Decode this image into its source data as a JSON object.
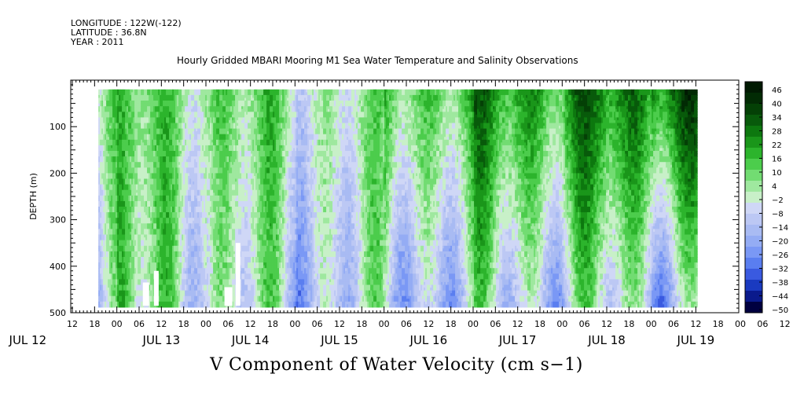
{
  "header": {
    "longitude": "LONGITUDE : 122W(-122)",
    "latitude": "LATITUDE : 36.8N",
    "year": "YEAR : 2011"
  },
  "chart_data": {
    "type": "heatmap",
    "title": "Hourly Gridded MBARI Mooring M1 Sea Water Temperature and Salinity Observations",
    "bottom_title": "V Component of Water Velocity (cm s−1)",
    "ylabel": "DEPTH (m)",
    "y_inverted": true,
    "ylim": [
      500,
      0
    ],
    "y_ticks": [
      100,
      200,
      300,
      400,
      500
    ],
    "y_tick_labels": [
      "100",
      "200",
      "300",
      "400",
      "500"
    ],
    "y_start_label": "",
    "data_depth_range": [
      20,
      485
    ],
    "x_hour_labels": [
      "12",
      "18",
      "00",
      "06",
      "12",
      "18",
      "00",
      "06",
      "12",
      "18",
      "00",
      "06",
      "12",
      "18",
      "00",
      "06",
      "12",
      "18",
      "00",
      "06",
      "12",
      "18",
      "00",
      "06",
      "12",
      "18",
      "00",
      "06",
      "12",
      "18",
      "00",
      "06",
      "12"
    ],
    "x_day_labels": [
      "JUL 12",
      "JUL 13",
      "JUL 14",
      "JUL 15",
      "JUL 16",
      "JUL 17",
      "JUL 18",
      "JUL 19"
    ],
    "data_time_range": [
      "JUL 12 19:00",
      "JUL 19 12:00"
    ],
    "colorbar": {
      "labels": [
        "46",
        "40",
        "34",
        "28",
        "22",
        "16",
        "10",
        "4",
        "−2",
        "−8",
        "−14",
        "−20",
        "−26",
        "−32",
        "−38",
        "−44",
        "−50"
      ],
      "min": -50,
      "max": 50,
      "colors": [
        "#000040",
        "#0a1a8c",
        "#1a3ac0",
        "#3a5ae0",
        "#5a7ef0",
        "#7a98f5",
        "#94acf4",
        "#a9bbf3",
        "#bcc8f4",
        "#cfd7f6",
        "#c8f0c8",
        "#9fe89f",
        "#72dc72",
        "#4ccd4c",
        "#2cb42c",
        "#1a961a",
        "#0d780f",
        "#085a0b",
        "#044006",
        "#022b04",
        "#011a02"
      ]
    },
    "pattern_description_segments_mean_v": [
      {
        "day": "JUL 12",
        "surface": 6,
        "deep": -6
      },
      {
        "day": "JUL 13",
        "surface": 10,
        "deep": 4
      },
      {
        "day": "JUL 14",
        "surface": 8,
        "deep": -4
      },
      {
        "day": "JUL 15",
        "surface": 2,
        "deep": -8
      },
      {
        "day": "JUL 16",
        "surface": 14,
        "deep": -10
      },
      {
        "day": "JUL 17",
        "surface": 22,
        "deep": -6
      },
      {
        "day": "JUL 18",
        "surface": 26,
        "deep": -4
      },
      {
        "day": "JUL 19",
        "surface": 34,
        "deep": -10
      }
    ]
  }
}
